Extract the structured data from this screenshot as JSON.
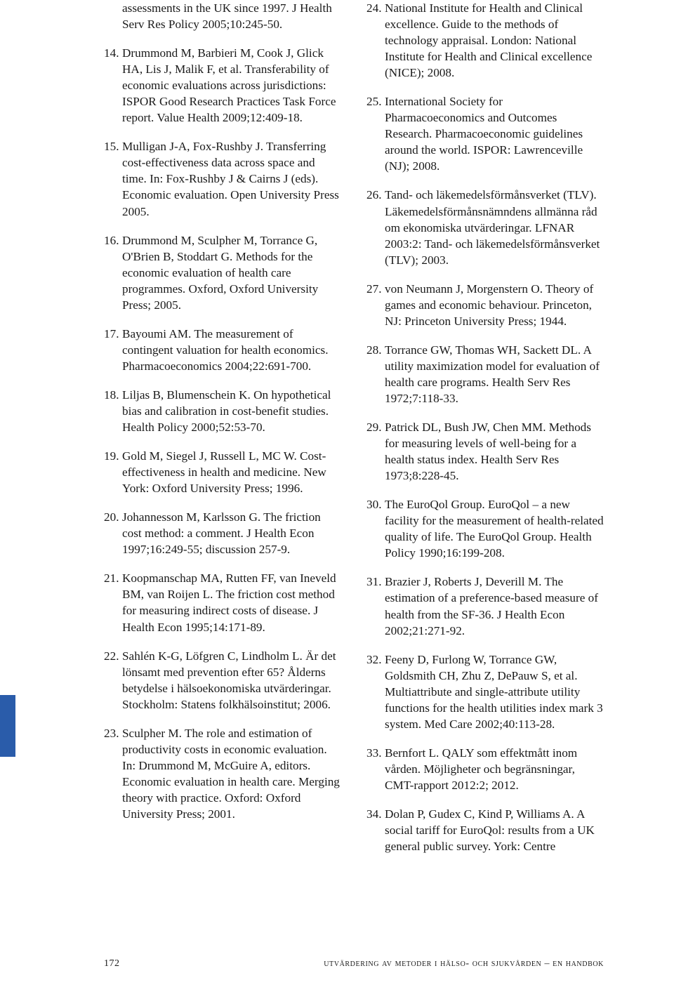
{
  "footer": {
    "page_number": "172",
    "title": "utvärdering av metoder i hälso- och sjukvården – en handbok"
  },
  "left_column": {
    "continuation": "assessments in the UK since 1997. J Health Serv Res Policy 2005;10:245-50.",
    "refs": [
      {
        "n": "14.",
        "t": "Drummond M, Barbieri M, Cook J, Glick HA, Lis J, Malik F, et al. Transferability of economic evaluations across jurisdictions: ISPOR Good Research Practices Task Force report. Value Health 2009;12:409-18."
      },
      {
        "n": "15.",
        "t": "Mulligan J-A, Fox-Rushby J. Transferring cost-effectiveness data across space and time. In: Fox-Rushby J & Cairns J (eds). Economic evaluation. Open University Press 2005."
      },
      {
        "n": "16.",
        "t": "Drummond M, Sculpher M, Torrance G, O'Brien B, Stoddart G. Methods for the economic evaluation of health care programmes. Oxford, Oxford University Press; 2005."
      },
      {
        "n": "17.",
        "t": "Bayoumi AM. The measurement of contingent valuation for health economics. Pharmacoeconomics 2004;22:691-700."
      },
      {
        "n": "18.",
        "t": "Liljas B, Blumenschein K. On hypothetical bias and calibration in cost-benefit studies. Health Policy 2000;52:53-70."
      },
      {
        "n": "19.",
        "t": "Gold M, Siegel J, Russell L, MC W. Cost-effectiveness in health and medicine. New York: Oxford University Press; 1996."
      },
      {
        "n": "20.",
        "t": "Johannesson M, Karlsson G. The friction cost method: a comment. J Health Econ 1997;16:249-55; discussion 257-9."
      },
      {
        "n": "21.",
        "t": "Koopmanschap MA, Rutten FF, van Ineveld BM, van Roijen L. The friction cost method for measuring indirect costs of disease. J Health Econ 1995;14:171-89."
      },
      {
        "n": "22.",
        "t": "Sahlén K-G, Löfgren C, Lindholm L. Är det lönsamt med prevention efter 65? Ålderns betydelse i hälsoekonomiska utvärderingar. Stockholm: Statens folkhälsoinstitut; 2006."
      },
      {
        "n": "23.",
        "t": "Sculpher M. The role and estimation of productivity costs in economic evaluation. In: Drummond M, McGuire A, editors. Economic evaluation in health care. Merging theory with practice. Oxford: Oxford University Press; 2001."
      }
    ]
  },
  "right_column": {
    "refs": [
      {
        "n": "24.",
        "t": "National Institute for Health and Clinical excellence. Guide to the methods of technology appraisal. London: National Institute for Health and Clinical excellence (NICE); 2008."
      },
      {
        "n": "25.",
        "t": "International Society for Pharmacoeconomics and Outcomes Research. Pharmacoeconomic guidelines around the world. ISPOR: Lawrenceville (NJ); 2008."
      },
      {
        "n": "26.",
        "t": "Tand- och läkemedelsförmånsverket (TLV). Läkemedelsförmånsnämndens allmänna råd om ekonomiska utvärderingar. LFNAR 2003:2: Tand- och läkemedelsförmånsverket (TLV); 2003."
      },
      {
        "n": "27.",
        "t": "von Neumann J, Morgenstern O. Theory of games and economic behaviour. Princeton, NJ: Princeton University Press; 1944."
      },
      {
        "n": "28.",
        "t": "Torrance GW, Thomas WH, Sackett DL. A utility maximization model for evaluation of health care programs. Health Serv Res 1972;7:118-33."
      },
      {
        "n": "29.",
        "t": "Patrick DL, Bush JW, Chen MM. Methods for measuring levels of well-being for a health status index. Health Serv Res 1973;8:228-45."
      },
      {
        "n": "30.",
        "t": "The EuroQol Group. EuroQol – a new facility for the measurement of health-related quality of life. The EuroQol Group. Health Policy 1990;16:199-208."
      },
      {
        "n": "31.",
        "t": "Brazier J, Roberts J, Deverill M. The estimation of a preference-based measure of health from the SF-36. J Health Econ 2002;21:271-92."
      },
      {
        "n": "32.",
        "t": "Feeny D, Furlong W, Torrance GW, Goldsmith CH, Zhu Z, DePauw S, et al. Multiattribute and single-attribute utility functions for the health utilities index mark 3 system. Med Care 2002;40:113-28."
      },
      {
        "n": "33.",
        "t": "Bernfort L. QALY som effektmått inom vården. Möjligheter och begränsningar, CMT-rapport 2012:2; 2012."
      },
      {
        "n": "34.",
        "t": "Dolan P, Gudex C, Kind P, Williams A. A social tariff for EuroQol: results from a UK general public survey. York: Centre"
      }
    ]
  }
}
